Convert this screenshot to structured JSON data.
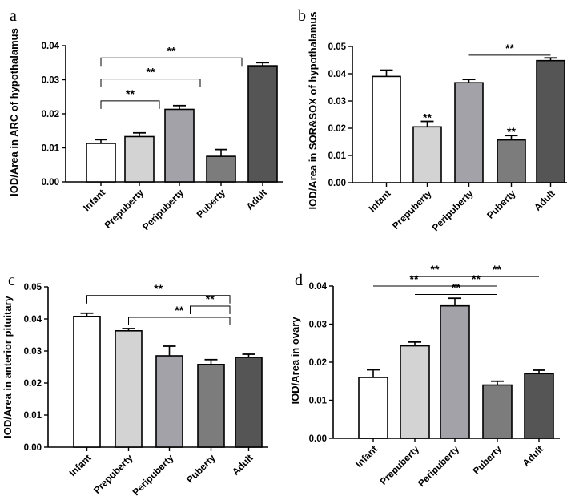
{
  "chart_data": [
    {
      "type": "bar",
      "panel": "a",
      "ylabel": "IOD/Area in ARC of hypothalamus",
      "categories": [
        "Infant",
        "Prepuberty",
        "Peripuberty",
        "Puberty",
        "Adult"
      ],
      "values": [
        0.0113,
        0.0133,
        0.0213,
        0.0075,
        0.0341
      ],
      "errors": [
        0.0011,
        0.0011,
        0.0011,
        0.002,
        0.0009
      ],
      "colors": [
        "#ffffff",
        "#d3d3d3",
        "#a2a2a8",
        "#7c7c7c",
        "#555555"
      ],
      "ylim": [
        0,
        0.04
      ],
      "yticks": [
        "0.00",
        "0.01",
        "0.02",
        "0.03",
        "0.04"
      ],
      "significance": [
        {
          "type": "bracket",
          "from": [
            0
          ],
          "to": [
            1,
            2
          ],
          "label": "**",
          "y": 0.0238
        },
        {
          "type": "bracket",
          "from": [
            0
          ],
          "to": [
            2,
            3
          ],
          "label": "**",
          "y": 0.0302
        },
        {
          "type": "bracket",
          "from": [
            0
          ],
          "to": [
            3,
            4
          ],
          "label": "**",
          "y": 0.0364
        }
      ]
    },
    {
      "type": "bar",
      "panel": "b",
      "ylabel": "IOD/Area in SOR&SOX of hypothalamus",
      "categories": [
        "Infant",
        "Prepuberty",
        "Peripuberty",
        "Puberty",
        "Adult"
      ],
      "values": [
        0.039,
        0.0205,
        0.0367,
        0.0157,
        0.0448
      ],
      "errors": [
        0.0023,
        0.002,
        0.0012,
        0.0016,
        0.001
      ],
      "colors": [
        "#ffffff",
        "#d3d3d3",
        "#a2a2a8",
        "#7c7c7c",
        "#555555"
      ],
      "ylim": [
        0,
        0.05
      ],
      "yticks": [
        "0.00",
        "0.01",
        "0.02",
        "0.03",
        "0.04",
        "0.05"
      ],
      "significance": [
        {
          "type": "star",
          "bar": 1,
          "label": "**"
        },
        {
          "type": "star",
          "bar": 3,
          "label": "**"
        },
        {
          "type": "line",
          "from": 2,
          "to": 4,
          "label": "**",
          "y": 0.0468
        }
      ]
    },
    {
      "type": "bar",
      "panel": "c",
      "ylabel": "IOD/Area in anterior pituitary",
      "categories": [
        "Infant",
        "Prepuberty",
        "Peripuberty",
        "Puberty",
        "Adult"
      ],
      "values": [
        0.0408,
        0.0363,
        0.0285,
        0.0258,
        0.028
      ],
      "errors": [
        0.001,
        0.0007,
        0.003,
        0.0015,
        0.001
      ],
      "colors": [
        "#ffffff",
        "#d3d3d3",
        "#a2a2a8",
        "#7c7c7c",
        "#555555"
      ],
      "ylim": [
        0,
        0.05
      ],
      "yticks": [
        "0.00",
        "0.01",
        "0.02",
        "0.03",
        "0.04",
        "0.05"
      ],
      "significance": [
        {
          "type": "bracket",
          "from": [
            0
          ],
          "to": [
            3,
            4
          ],
          "label": "**",
          "y": 0.0473
        },
        {
          "type": "bracket",
          "from": [
            1
          ],
          "to": [
            3,
            4
          ],
          "label": "**",
          "y": 0.0405
        },
        {
          "type": "bracket",
          "from": [
            3,
            4
          ],
          "to": [
            2,
            3
          ],
          "label": "**",
          "y": 0.044
        }
      ]
    },
    {
      "type": "bar",
      "panel": "d",
      "ylabel": "IOD/Area in ovary",
      "categories": [
        "Infant",
        "Prepuberty",
        "Peripuberty",
        "Puberty",
        "Adult"
      ],
      "values": [
        0.016,
        0.0243,
        0.0348,
        0.014,
        0.017
      ],
      "errors": [
        0.002,
        0.001,
        0.002,
        0.001,
        0.0009
      ],
      "colors": [
        "#ffffff",
        "#d3d3d3",
        "#a2a2a8",
        "#7c7c7c",
        "#555555"
      ],
      "ylim": [
        0,
        0.04
      ],
      "yticks": [
        "0.00",
        "0.01",
        "0.02",
        "0.03",
        "0.04"
      ],
      "significance": [
        {
          "type": "line",
          "from": 1,
          "to": 2,
          "label": "**",
          "y": 0.0425
        },
        {
          "type": "line",
          "from": 2,
          "to": 4,
          "label": "**",
          "y": 0.0425
        },
        {
          "type": "line",
          "from": 0,
          "to": 2,
          "label": "**",
          "y": 0.04
        },
        {
          "type": "line",
          "from": 2,
          "to": 3,
          "label": "**",
          "y": 0.04
        },
        {
          "type": "line",
          "from": 1,
          "to": 3,
          "label": "**",
          "y": 0.0378
        }
      ]
    }
  ]
}
